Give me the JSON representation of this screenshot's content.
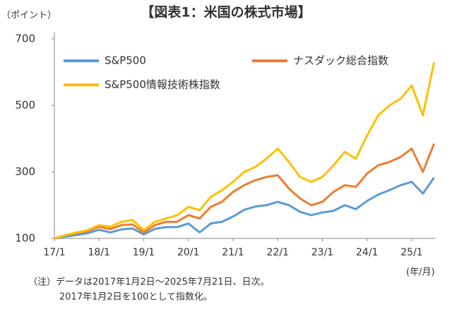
{
  "chart_data": {
    "type": "line",
    "title": "【図表1：米国の株式市場】",
    "y_label": "（ポイント）",
    "x_label": "(年/月)",
    "notes": [
      "（注）データは2017年1月2日～2025年7月21日、日次。",
      "2017年1月2日を100として指数化。"
    ],
    "x": [
      "17/1",
      "17/4",
      "17/7",
      "17/10",
      "18/1",
      "18/4",
      "18/7",
      "18/10",
      "19/1",
      "19/4",
      "19/7",
      "19/10",
      "20/1",
      "20/4",
      "20/7",
      "20/10",
      "21/1",
      "21/4",
      "21/7",
      "21/10",
      "22/1",
      "22/4",
      "22/7",
      "22/10",
      "23/1",
      "23/4",
      "23/7",
      "23/10",
      "24/1",
      "24/4",
      "24/7",
      "24/10",
      "25/1",
      "25/4",
      "25/7"
    ],
    "xticks": [
      "17/1",
      "18/1",
      "19/1",
      "20/1",
      "21/1",
      "22/1",
      "23/1",
      "24/1",
      "25/1"
    ],
    "ylim": [
      100,
      700
    ],
    "yticks": [
      100,
      300,
      500,
      700
    ],
    "grid": false,
    "series": [
      {
        "name": "S&P500",
        "color": "#5b9bd5",
        "values": [
          100,
          106,
          110,
          116,
          126,
          118,
          127,
          130,
          112,
          129,
          134,
          134,
          145,
          118,
          145,
          150,
          166,
          186,
          196,
          200,
          210,
          200,
          180,
          170,
          178,
          183,
          200,
          188,
          213,
          232,
          245,
          260,
          270,
          235,
          283
        ]
      },
      {
        "name": "ナスダック総合指数",
        "color": "#ed7d31",
        "values": [
          100,
          110,
          115,
          122,
          135,
          128,
          140,
          142,
          118,
          140,
          150,
          150,
          170,
          160,
          195,
          210,
          240,
          260,
          275,
          285,
          290,
          250,
          220,
          200,
          210,
          240,
          260,
          255,
          295,
          320,
          330,
          345,
          370,
          300,
          385
        ]
      },
      {
        "name": "S&P500情報技術株指数",
        "color": "#ffc000",
        "values": [
          100,
          110,
          118,
          125,
          140,
          135,
          150,
          155,
          125,
          150,
          160,
          170,
          195,
          185,
          225,
          245,
          270,
          300,
          315,
          340,
          370,
          330,
          285,
          270,
          285,
          320,
          360,
          340,
          410,
          470,
          500,
          520,
          560,
          470,
          630
        ]
      }
    ]
  }
}
